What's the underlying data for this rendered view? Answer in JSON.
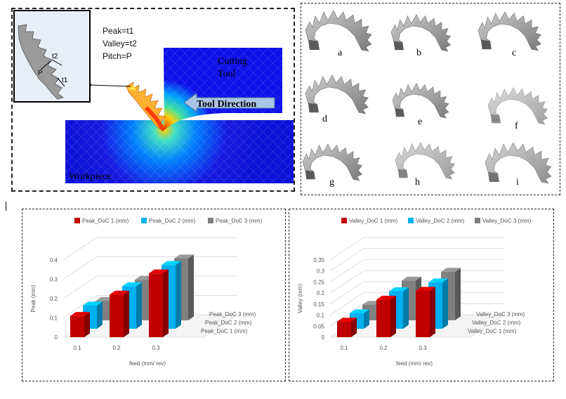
{
  "simulation": {
    "params": [
      "Peak=t1",
      "Valley=t2",
      "Pitch=P"
    ],
    "inset_labels": [
      "t2",
      "P",
      "t1"
    ],
    "tool_label_line1": "Cutting",
    "tool_label_line2": "Tool",
    "direction_label": "Tool Direction",
    "workpiece_label": "Workpiece"
  },
  "shapes": {
    "labels": [
      "a",
      "b",
      "c",
      "d",
      "e",
      "f",
      "g",
      "h",
      "i"
    ]
  },
  "chart_data": [
    {
      "type": "bar",
      "chart_style": "3d-clustered-column",
      "title": "",
      "categories": [
        "0.1",
        "0.2",
        "0.3"
      ],
      "series": [
        {
          "name": "Peak_DoC 1 (mm)",
          "color": "#c00000",
          "values": [
            0.11,
            0.22,
            0.33
          ]
        },
        {
          "name": "Peak_DoC 2 (mm)",
          "color": "#00b0f0",
          "values": [
            0.12,
            0.22,
            0.33
          ]
        },
        {
          "name": "Peak_DoC 3 (mm)",
          "color": "#808080",
          "values": [
            0.1,
            0.21,
            0.32
          ]
        }
      ],
      "xlabel": "feed (mm/ rev)",
      "ylabel": "Peak (mm)",
      "yticks": [
        "0",
        "0.1",
        "0.2",
        "0.3",
        "0.4"
      ],
      "ylim": [
        0,
        0.4
      ],
      "legend": "top"
    },
    {
      "type": "bar",
      "chart_style": "3d-clustered-column",
      "title": "",
      "categories": [
        "0.1",
        "0.2",
        "0.3"
      ],
      "series": [
        {
          "name": "Valley_DoC 1 (mm)",
          "color": "#c00000",
          "values": [
            0.07,
            0.17,
            0.21
          ]
        },
        {
          "name": "Valley_DoC 2 (mm)",
          "color": "#00b0f0",
          "values": [
            0.07,
            0.17,
            0.21
          ]
        },
        {
          "name": "Valley_DoC 3 (mm)",
          "color": "#808080",
          "values": [
            0.07,
            0.18,
            0.22
          ]
        }
      ],
      "xlabel": "feed (mm/ rev)",
      "ylabel": "Valley (mm)",
      "yticks": [
        "0",
        "0.05",
        "0.1",
        "0.15",
        "0.2",
        "0.25",
        "0.3",
        "0.35"
      ],
      "ylim": [
        0,
        0.35
      ],
      "legend": "top"
    }
  ]
}
